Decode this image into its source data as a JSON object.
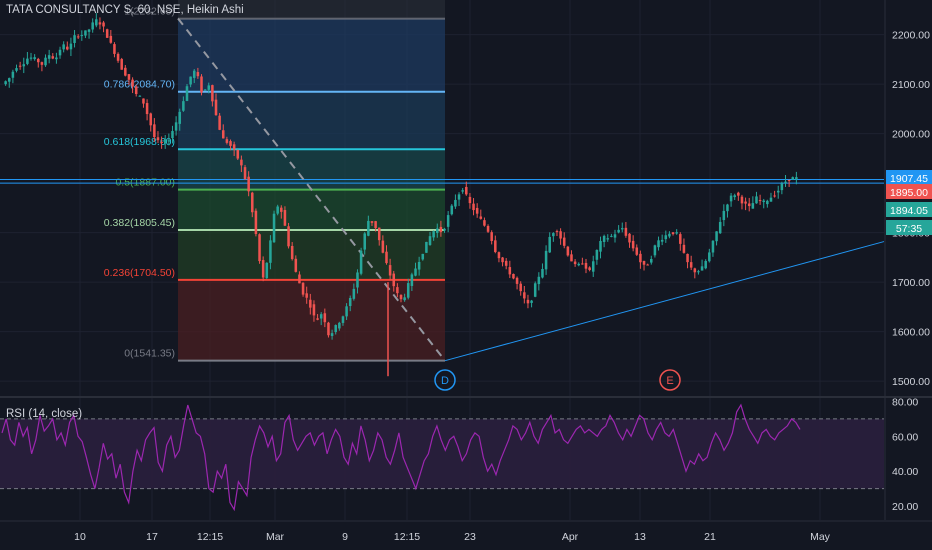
{
  "header": {
    "title": "TATA CONSULTANCY S, 60, NSE, Heikin Ashi",
    "rsi_title": "RSI (14, close)"
  },
  "colors": {
    "background": "#131722",
    "up": "#26a69a",
    "down": "#ef5350",
    "trendline": "#2196f3",
    "rsi": "#9c27b0",
    "axis_text": "#d1d4dc"
  },
  "chart_data": [
    {
      "type": "candlestick",
      "title": "TATA CONSULTANCY S, 60, NSE, Heikin Ashi",
      "y_axis": {
        "ticks": [
          "2200.00",
          "2100.00",
          "2000.00",
          "1900.00",
          "1800.00",
          "1700.00",
          "1600.00",
          "1500.00"
        ],
        "range": [
          1470,
          2270
        ]
      },
      "x_axis": {
        "ticks": [
          "10",
          "17",
          "12:15",
          "Mar",
          "9",
          "12:15",
          "23",
          "Apr",
          "13",
          "21",
          "May"
        ]
      },
      "price_labels": [
        {
          "value": "1907.45",
          "color": "#2196f3"
        },
        {
          "value": "1895.00",
          "color": "#ef5350"
        },
        {
          "value": "1894.05",
          "color": "#26a69a"
        },
        {
          "value": "57:35",
          "color": "#26a69a"
        }
      ],
      "fibonacci": [
        {
          "ratio": "1",
          "price": 2232.65,
          "label": "1(2232.65)",
          "color": "#787b86"
        },
        {
          "ratio": "0.786",
          "price": 2084.7,
          "label": "0.786(2084.70)",
          "color": "#64b5f6"
        },
        {
          "ratio": "0.618",
          "price": 1968.6,
          "label": "0.618(1968.60)",
          "color": "#26c6da"
        },
        {
          "ratio": "0.5",
          "price": 1887.0,
          "label": "0.5(1887.00)",
          "color": "#4caf50"
        },
        {
          "ratio": "0.382",
          "price": 1805.45,
          "label": "0.382(1805.45)",
          "color": "#a5d6a7"
        },
        {
          "ratio": "0.236",
          "price": 1704.5,
          "label": "0.236(1704.50)",
          "color": "#f44336"
        },
        {
          "ratio": "0",
          "price": 1541.35,
          "label": "0(1541.35)",
          "color": "#787b86"
        }
      ],
      "horizontal_lines": [
        1907.45,
        1900.0
      ],
      "markers": [
        {
          "label": "D",
          "color": "#2196f3"
        },
        {
          "label": "E",
          "color": "#ef5350"
        }
      ],
      "path_points": [
        [
          2100,
          2110
        ],
        [
          2135,
          2140
        ],
        [
          2155,
          2150
        ],
        [
          2140,
          2160
        ],
        [
          2150,
          2180
        ],
        [
          2170,
          2200
        ],
        [
          2200,
          2210
        ],
        [
          2230,
          2220
        ],
        [
          2190,
          2160
        ],
        [
          2130,
          2110
        ],
        [
          2080,
          2070
        ],
        [
          2030,
          1985
        ],
        [
          1980,
          1990
        ],
        [
          2020,
          2060
        ],
        [
          2110,
          2130
        ],
        [
          2080,
          2100
        ],
        [
          2040,
          1990
        ],
        [
          1980,
          1960
        ],
        [
          1930,
          1880
        ],
        [
          1800,
          1700
        ],
        [
          1760,
          1860
        ],
        [
          1840,
          1770
        ],
        [
          1720,
          1680
        ],
        [
          1660,
          1620
        ],
        [
          1640,
          1590
        ],
        [
          1610,
          1630
        ],
        [
          1660,
          1700
        ],
        [
          1780,
          1830
        ],
        [
          1810,
          1760
        ],
        [
          1720,
          1680
        ],
        [
          1660,
          1700
        ],
        [
          1730,
          1760
        ],
        [
          1790,
          1810
        ],
        [
          1800,
          1840
        ],
        [
          1870,
          1890
        ],
        [
          1860,
          1840
        ],
        [
          1820,
          1800
        ],
        [
          1760,
          1740
        ],
        [
          1720,
          1700
        ],
        [
          1670,
          1650
        ],
        [
          1700,
          1730
        ],
        [
          1790,
          1810
        ],
        [
          1780,
          1750
        ],
        [
          1730,
          1740
        ],
        [
          1720,
          1760
        ],
        [
          1790,
          1790
        ],
        [
          1800,
          1810
        ],
        [
          1780,
          1760
        ],
        [
          1730,
          1740
        ],
        [
          1780,
          1790
        ],
        [
          1800,
          1800
        ],
        [
          1760,
          1730
        ],
        [
          1720,
          1730
        ],
        [
          1760,
          1800
        ],
        [
          1840,
          1870
        ],
        [
          1880,
          1860
        ],
        [
          1850,
          1870
        ],
        [
          1860,
          1870
        ],
        [
          1880,
          1900
        ],
        [
          1910,
          1910
        ]
      ]
    },
    {
      "type": "line",
      "title": "RSI (14, close)",
      "y_axis": {
        "ticks": [
          "80.00",
          "60.00",
          "40.00",
          "20.00"
        ],
        "range": [
          12,
          82
        ]
      },
      "levels": [
        70,
        30
      ],
      "points": [
        62,
        70,
        58,
        55,
        68,
        60,
        65,
        50,
        58,
        72,
        63,
        66,
        70,
        58,
        62,
        55,
        68,
        72,
        60,
        57,
        48,
        38,
        30,
        42,
        56,
        47,
        50,
        36,
        44,
        28,
        22,
        40,
        52,
        46,
        58,
        62,
        65,
        45,
        40,
        55,
        60,
        48,
        52,
        66,
        78,
        70,
        62,
        60,
        50,
        30,
        28,
        40,
        36,
        44,
        22,
        18,
        34,
        30,
        26,
        48,
        58,
        66,
        62,
        54,
        60,
        46,
        50,
        68,
        72,
        58,
        52,
        56,
        60,
        62,
        55,
        60,
        62,
        50,
        58,
        64,
        60,
        48,
        44,
        56,
        50,
        66,
        58,
        46,
        52,
        62,
        58,
        48,
        44,
        52,
        62,
        48,
        42,
        36,
        30,
        38,
        46,
        50,
        60,
        66,
        58,
        52,
        58,
        60,
        54,
        46,
        50,
        58,
        62,
        60,
        48,
        40,
        44,
        38,
        46,
        52,
        58,
        66,
        64,
        58,
        62,
        68,
        60,
        56,
        64,
        68,
        72,
        62,
        64,
        58,
        56,
        60,
        64,
        66,
        62,
        64,
        62,
        60,
        64,
        66,
        72,
        68,
        62,
        58,
        64,
        60,
        66,
        72,
        70,
        62,
        58,
        64,
        68,
        62,
        60,
        64,
        56,
        48,
        40,
        46,
        44,
        50,
        46,
        48,
        56,
        62,
        58,
        52,
        56,
        62,
        74,
        78,
        70,
        64,
        60,
        56,
        62,
        64,
        60,
        58,
        62,
        64,
        66,
        70,
        68,
        64
      ]
    }
  ]
}
